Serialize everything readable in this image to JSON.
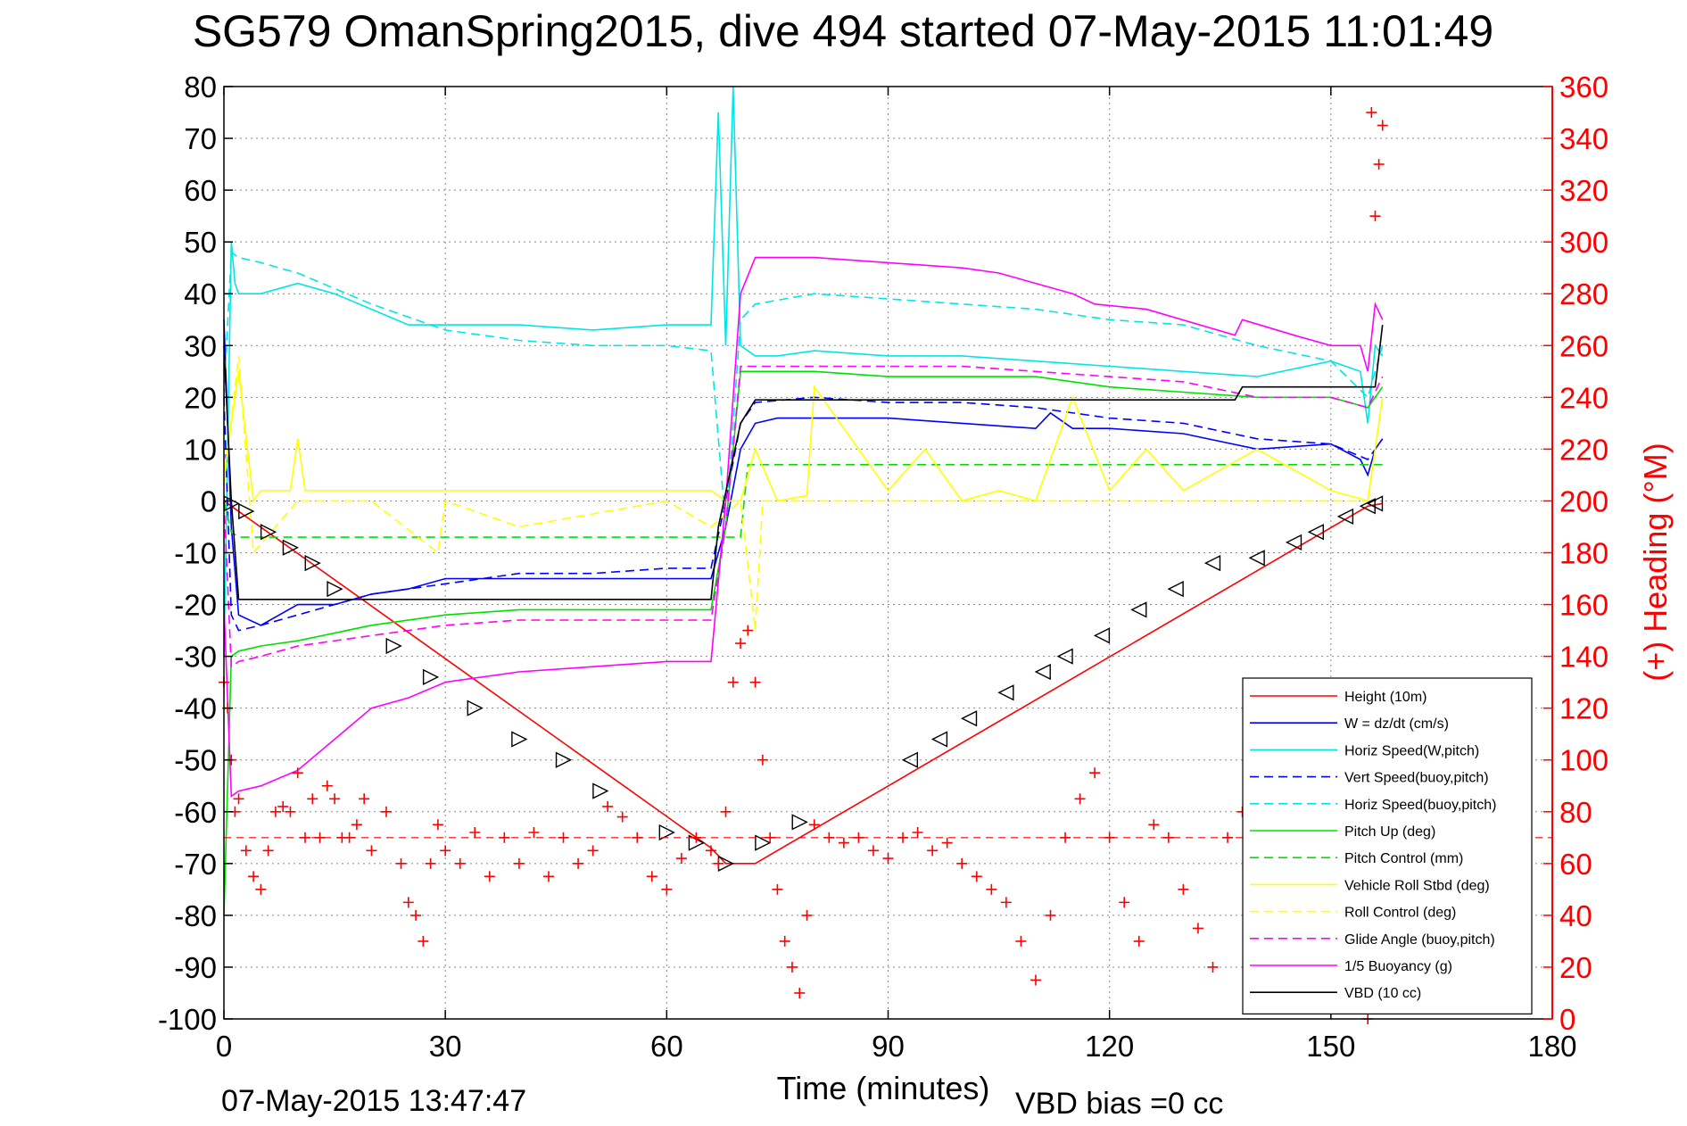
{
  "chart_data": {
    "type": "line",
    "title": "SG579 OmanSpring2015, dive 494 started 07-May-2015 11:01:49",
    "xlabel": "Time (minutes)",
    "ylabel_right": "(+) Heading (°M)",
    "footer_left": "07-May-2015 13:47:47",
    "footer_right": "VBD bias =0 cc",
    "xlim": [
      0,
      180
    ],
    "ylim": [
      -100,
      80
    ],
    "ylim_right": [
      0,
      360
    ],
    "x_ticks": [
      0,
      30,
      60,
      90,
      120,
      150,
      180
    ],
    "y_ticks": [
      80,
      70,
      60,
      50,
      40,
      30,
      20,
      10,
      0,
      -10,
      -20,
      -30,
      -40,
      -50,
      -60,
      -70,
      -80,
      -90,
      -100
    ],
    "y_ticks_right": [
      360,
      340,
      320,
      300,
      280,
      260,
      240,
      220,
      200,
      180,
      160,
      140,
      120,
      100,
      80,
      60,
      40,
      20,
      0
    ],
    "grid": true,
    "legend_position": "bottom-right",
    "series": [
      {
        "name": "Height (10m)",
        "color": "#ff0000",
        "style": "solid",
        "x": [
          0,
          66,
          68,
          72,
          155,
          157
        ],
        "y": [
          0,
          -67,
          -70,
          -70,
          -1,
          -0.5
        ]
      },
      {
        "name": "W = dz/dt (cm/s)",
        "color": "#0000ff",
        "style": "solid",
        "x": [
          0,
          1,
          2,
          5,
          10,
          15,
          20,
          25,
          30,
          40,
          50,
          60,
          66,
          68,
          70,
          72,
          75,
          80,
          90,
          100,
          110,
          112,
          115,
          120,
          130,
          140,
          150,
          154,
          155,
          156,
          157
        ],
        "y": [
          35,
          -5,
          -22,
          -24,
          -20,
          -20,
          -18,
          -17,
          -15,
          -15,
          -15,
          -15,
          -15,
          -5,
          10,
          15,
          16,
          16,
          16,
          15,
          14,
          17,
          14,
          14,
          13,
          10,
          11,
          8,
          5,
          10,
          12
        ]
      },
      {
        "name": "Horiz Speed(W,pitch)",
        "color": "#00e5e5",
        "style": "solid",
        "x": [
          0,
          1,
          1.5,
          2,
          5,
          10,
          15,
          20,
          25,
          30,
          40,
          50,
          60,
          66,
          67,
          68,
          69,
          70,
          72,
          75,
          80,
          90,
          100,
          110,
          120,
          130,
          140,
          150,
          154,
          155,
          156,
          157
        ],
        "y": [
          -30,
          50,
          42,
          40,
          40,
          42,
          40,
          37,
          34,
          34,
          34,
          33,
          34,
          34,
          75,
          30,
          80,
          30,
          28,
          28,
          29,
          28,
          28,
          27,
          26,
          25,
          24,
          27,
          25,
          15,
          30,
          28
        ]
      },
      {
        "name": "Vert Speed(buoy,pitch)",
        "color": "#0000ff",
        "style": "dashed",
        "x": [
          0,
          1,
          2,
          5,
          10,
          20,
          30,
          40,
          50,
          60,
          66,
          68,
          70,
          72,
          80,
          90,
          100,
          110,
          120,
          130,
          140,
          150,
          155,
          157
        ],
        "y": [
          20,
          -22,
          -25,
          -24,
          -22,
          -18,
          -16,
          -14,
          -14,
          -13,
          -13,
          0,
          15,
          19,
          20,
          19,
          19,
          18,
          16,
          15,
          12,
          11,
          8,
          12
        ]
      },
      {
        "name": "Horiz Speed(buoy,pitch)",
        "color": "#00e5e5",
        "style": "dashed",
        "x": [
          0,
          1,
          2,
          5,
          10,
          20,
          30,
          40,
          50,
          60,
          66,
          68,
          70,
          72,
          80,
          90,
          100,
          110,
          120,
          130,
          140,
          150,
          155,
          157
        ],
        "y": [
          20,
          48,
          47,
          46,
          44,
          38,
          33,
          31,
          30,
          30,
          29,
          -5,
          35,
          38,
          40,
          39,
          38,
          37,
          35,
          34,
          30,
          27,
          20,
          30
        ]
      },
      {
        "name": "Pitch Up (deg)",
        "color": "#00e000",
        "style": "solid",
        "x": [
          0,
          1,
          2,
          5,
          10,
          20,
          30,
          40,
          50,
          60,
          66,
          68,
          70,
          72,
          80,
          90,
          100,
          110,
          120,
          130,
          140,
          150,
          155,
          157
        ],
        "y": [
          -80,
          -30,
          -29,
          -28,
          -27,
          -24,
          -22,
          -21,
          -21,
          -21,
          -21,
          -5,
          25,
          25,
          25,
          24,
          24,
          24,
          22,
          21,
          20,
          20,
          18,
          22
        ]
      },
      {
        "name": "Pitch Control (mm)",
        "color": "#00e000",
        "style": "dashed",
        "x": [
          0,
          1,
          2,
          70,
          71,
          157
        ],
        "y": [
          0,
          -6,
          -7,
          -7,
          7,
          7
        ]
      },
      {
        "name": "Vehicle Roll Stbd (deg)",
        "color": "#ffff00",
        "style": "solid",
        "x": [
          0,
          2,
          4,
          5,
          9,
          10,
          11,
          12,
          30,
          40,
          60,
          66,
          68,
          70,
          72,
          75,
          79,
          80,
          90,
          95,
          100,
          105,
          110,
          115,
          120,
          125,
          130,
          140,
          150,
          155,
          157
        ],
        "y": [
          5,
          25,
          0,
          2,
          2,
          12,
          2,
          2,
          2,
          2,
          2,
          2,
          0,
          0,
          10,
          0,
          1,
          22,
          2,
          10,
          0,
          2,
          0,
          20,
          2,
          10,
          2,
          10,
          2,
          0,
          20
        ]
      },
      {
        "name": "Roll Control (deg)",
        "color": "#ffff00",
        "style": "dashed",
        "x": [
          0,
          2,
          4,
          10,
          20,
          29,
          30,
          40,
          60,
          66,
          70,
          72,
          73,
          80,
          90,
          100,
          110,
          120,
          130,
          140,
          150,
          155,
          157
        ],
        "y": [
          3,
          28,
          -10,
          0,
          0,
          -10,
          0,
          -5,
          0,
          -5,
          0,
          -25,
          0,
          0,
          0,
          0,
          0,
          0,
          0,
          0,
          0,
          0,
          20
        ]
      },
      {
        "name": "Glide Angle (buoy,pitch)",
        "color": "#ff00ff",
        "style": "dashed",
        "x": [
          0,
          1,
          2,
          5,
          10,
          20,
          30,
          40,
          50,
          60,
          66,
          68,
          70,
          72,
          80,
          90,
          100,
          110,
          120,
          130,
          140,
          150,
          155,
          157
        ],
        "y": [
          0,
          -32,
          -31,
          -30,
          -28,
          -26,
          -24,
          -23,
          -23,
          -23,
          -23,
          -5,
          26,
          26,
          26,
          26,
          26,
          25,
          24,
          23,
          20,
          20,
          18,
          24
        ]
      },
      {
        "name": "1/5 Buoyancy (g)",
        "color": "#ff00ff",
        "style": "solid",
        "x": [
          0,
          1,
          2,
          5,
          10,
          15,
          20,
          25,
          30,
          40,
          50,
          60,
          66,
          68,
          70,
          72,
          80,
          90,
          100,
          105,
          110,
          115,
          118,
          125,
          137,
          138,
          145,
          150,
          154,
          155,
          156,
          157
        ],
        "y": [
          -20,
          -57,
          -56,
          -55,
          -52,
          -46,
          -40,
          -38,
          -35,
          -33,
          -32,
          -31,
          -31,
          0,
          40,
          47,
          47,
          46,
          45,
          44,
          42,
          40,
          38,
          37,
          32,
          35,
          32,
          30,
          30,
          25,
          38,
          35
        ]
      },
      {
        "name": "VBD (10 cc)",
        "color": "#000000",
        "style": "solid",
        "x": [
          0,
          1,
          2,
          66,
          67,
          70,
          72,
          137,
          138,
          156,
          157
        ],
        "y": [
          30,
          0,
          -19,
          -19,
          -5,
          15,
          19.5,
          19.5,
          22,
          22,
          34
        ]
      },
      {
        "name": "Heading",
        "color": "#ff0000",
        "style": "markers",
        "marker": "+",
        "axis": "right",
        "x": [
          0,
          0.5,
          1,
          1.5,
          2,
          3,
          4,
          5,
          6,
          7,
          8,
          9,
          10,
          11,
          12,
          13,
          14,
          15,
          16,
          17,
          18,
          19,
          20,
          22,
          24,
          25,
          26,
          27,
          28,
          29,
          30,
          32,
          34,
          36,
          38,
          40,
          42,
          44,
          46,
          48,
          50,
          52,
          54,
          56,
          58,
          60,
          62,
          64,
          66,
          67,
          68,
          69,
          70,
          71,
          72,
          73,
          74,
          75,
          76,
          77,
          78,
          79,
          80,
          82,
          84,
          86,
          88,
          90,
          92,
          94,
          96,
          98,
          100,
          102,
          104,
          106,
          108,
          110,
          112,
          114,
          116,
          118,
          120,
          122,
          124,
          126,
          128,
          130,
          132,
          134,
          136,
          138,
          139,
          154,
          155,
          155.5,
          156,
          156.5,
          157
        ],
        "y": [
          130,
          120,
          100,
          80,
          85,
          65,
          55,
          50,
          65,
          80,
          82,
          80,
          95,
          70,
          85,
          70,
          90,
          85,
          70,
          70,
          75,
          85,
          65,
          80,
          60,
          45,
          40,
          30,
          60,
          75,
          65,
          60,
          72,
          55,
          70,
          60,
          72,
          55,
          70,
          60,
          65,
          82,
          78,
          70,
          55,
          50,
          62,
          70,
          65,
          60,
          80,
          130,
          145,
          150,
          130,
          100,
          70,
          50,
          30,
          20,
          10,
          40,
          75,
          70,
          68,
          70,
          65,
          62,
          70,
          72,
          65,
          68,
          60,
          55,
          50,
          45,
          30,
          15,
          40,
          70,
          85,
          95,
          70,
          45,
          30,
          75,
          70,
          50,
          35,
          20,
          70,
          80,
          70,
          45,
          0,
          350,
          310,
          330,
          345
        ]
      }
    ],
    "depth_markers": {
      "description_hidden": true,
      "x": [
        1,
        3,
        6,
        9,
        12,
        15,
        23,
        28,
        34,
        40,
        46,
        51,
        60,
        64,
        68,
        73,
        78,
        93,
        97,
        101,
        106,
        111,
        114,
        119,
        124,
        129,
        134,
        140,
        145,
        148,
        152,
        155,
        156
      ],
      "y": [
        -0.5,
        -2,
        -6,
        -9,
        -12,
        -17,
        -28,
        -34,
        -40,
        -46,
        -50,
        -56,
        -64,
        -66,
        -70,
        -66,
        -62,
        -50,
        -46,
        -42,
        -37,
        -33,
        -30,
        -26,
        -21,
        -17,
        -12,
        -11,
        -8,
        -6,
        -3,
        -1,
        -0.5
      ]
    },
    "heading_reference": {
      "axis": "right",
      "y": 70,
      "style": "dashed",
      "color": "#ff0000"
    }
  }
}
